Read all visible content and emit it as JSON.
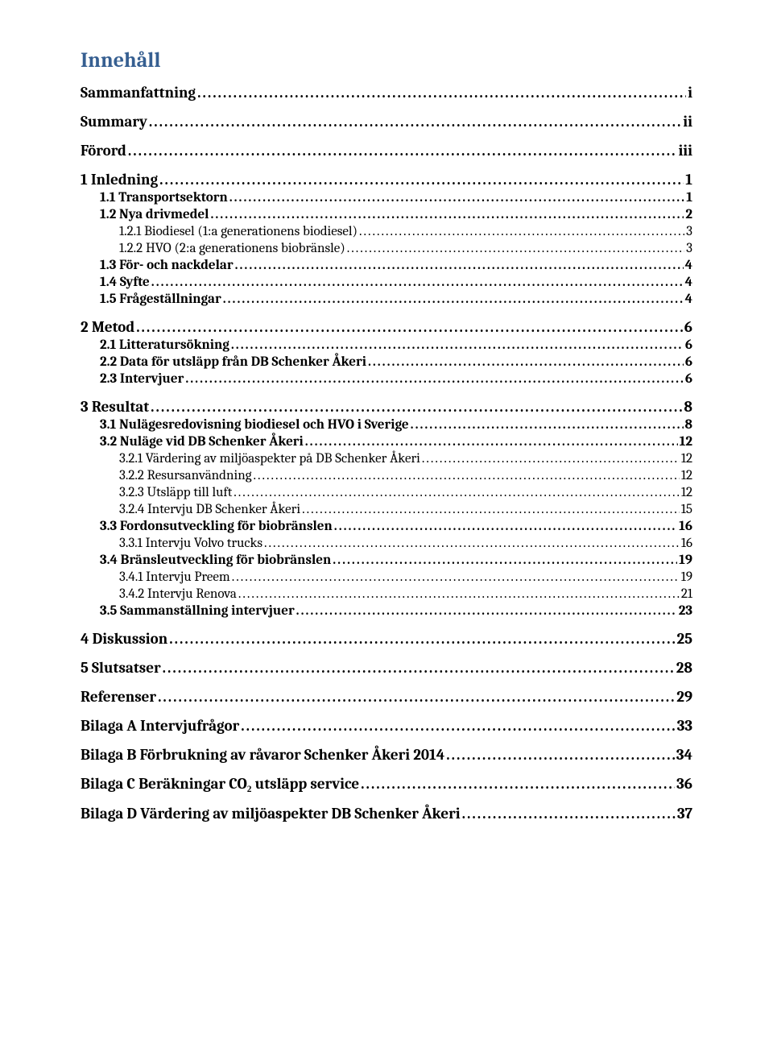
{
  "title": "Innehåll",
  "colors": {
    "heading": "#365f91",
    "text": "#000000",
    "background": "#ffffff"
  },
  "typography": {
    "title_fontsize": 26,
    "l0_fontsize": 19,
    "l1_fontsize": 17,
    "l2_fontsize": 17,
    "font_family": "Cambria, Georgia, serif"
  },
  "entries": [
    {
      "level": 0,
      "label": "Sammanfattning",
      "page": "i"
    },
    {
      "level": 0,
      "label": "Summary",
      "page": "ii"
    },
    {
      "level": 0,
      "label": "Förord",
      "page": "iii"
    },
    {
      "level": 0,
      "label": "1 Inledning",
      "page": "1"
    },
    {
      "level": 1,
      "label": "1.1 Transportsektorn",
      "page": "1"
    },
    {
      "level": 1,
      "label": "1.2 Nya drivmedel",
      "page": "2"
    },
    {
      "level": 2,
      "label": "1.2.1 Biodiesel (1:a generationens biodiesel)",
      "page": "3"
    },
    {
      "level": 2,
      "label": "1.2.2 HVO (2:a generationens biobränsle)",
      "page": "3"
    },
    {
      "level": 1,
      "label": "1.3 För- och nackdelar",
      "page": "4"
    },
    {
      "level": 1,
      "label": "1.4 Syfte",
      "page": "4"
    },
    {
      "level": 1,
      "label": "1.5 Frågeställningar",
      "page": "4"
    },
    {
      "level": 0,
      "label": "2 Metod",
      "page": "6"
    },
    {
      "level": 1,
      "label": "2.1 Litteratursökning",
      "page": "6"
    },
    {
      "level": 1,
      "label": "2.2 Data för utsläpp från DB Schenker Åkeri",
      "page": "6"
    },
    {
      "level": 1,
      "label": "2.3 Intervjuer",
      "page": "6"
    },
    {
      "level": 0,
      "label": "3 Resultat",
      "page": "8"
    },
    {
      "level": 1,
      "label": "3.1 Nulägesredovisning biodiesel och HVO i Sverige",
      "page": "8"
    },
    {
      "level": 1,
      "label": "3.2 Nuläge vid DB Schenker Åkeri",
      "page": "12"
    },
    {
      "level": 2,
      "label": "3.2.1 Värdering av miljöaspekter på DB Schenker Åkeri",
      "page": "12"
    },
    {
      "level": 2,
      "label": "3.2.2 Resursanvändning",
      "page": "12"
    },
    {
      "level": 2,
      "label": "3.2.3 Utsläpp till luft",
      "page": "12"
    },
    {
      "level": 2,
      "label": "3.2.4 Intervju DB Schenker Åkeri",
      "page": "15"
    },
    {
      "level": 1,
      "label": "3.3 Fordonsutveckling för biobränslen",
      "page": "16"
    },
    {
      "level": 2,
      "label": "3.3.1 Intervju Volvo trucks",
      "page": "16"
    },
    {
      "level": 1,
      "label": "3.4 Bränsleutveckling för biobränslen",
      "page": "19"
    },
    {
      "level": 2,
      "label": "3.4.1 Intervju Preem",
      "page": "19"
    },
    {
      "level": 2,
      "label": "3.4.2 Intervju Renova",
      "page": "21"
    },
    {
      "level": 1,
      "label": "3.5 Sammanställning intervjuer",
      "page": "23"
    },
    {
      "level": 0,
      "label": "4 Diskussion",
      "page": "25"
    },
    {
      "level": 0,
      "label": "5 Slutsatser",
      "page": "28"
    },
    {
      "level": 0,
      "label": "Referenser",
      "page": "29"
    },
    {
      "level": 0,
      "label": "Bilaga A Intervjufrågor",
      "page": "33"
    },
    {
      "level": 0,
      "label": "Bilaga B Förbrukning av råvaror Schenker Åkeri 2014",
      "page": "34"
    },
    {
      "level": 0,
      "label": "Bilaga C Beräkningar CO₂ utsläpp service",
      "page": "36"
    },
    {
      "level": 0,
      "label": "Bilaga D Värdering av miljöaspekter DB Schenker Åkeri",
      "page": "37"
    }
  ]
}
